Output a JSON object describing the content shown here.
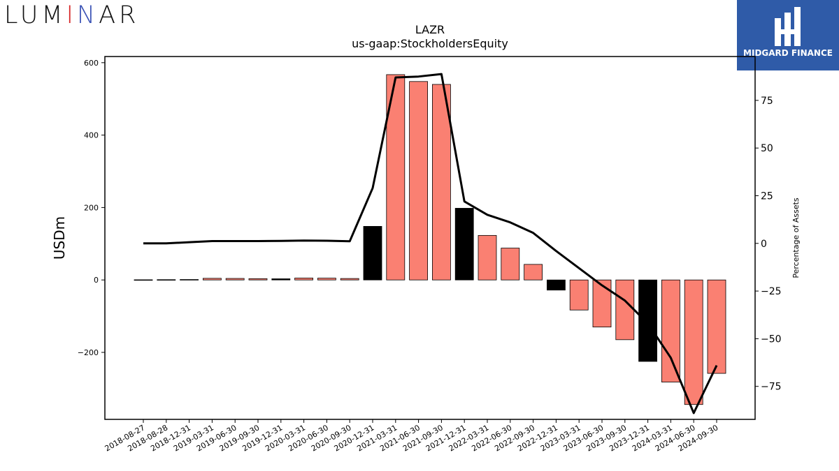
{
  "branding": {
    "left_logo_text": "LUMINAR",
    "right_logo_text": "MIDGARD FINANCE",
    "left_logo_accent_colors": [
      "#d62728",
      "#2ca02c",
      "#3a52b5"
    ],
    "right_logo_bg": "#2f5ba8"
  },
  "chart_data": {
    "type": "bar",
    "title": "LAZR",
    "subtitle": "us-gaap:StockholdersEquity",
    "ylabel": "USDm",
    "y2label": "Percentage of Assets",
    "categories": [
      "2018-08-27",
      "2018-08-28",
      "2018-12-31",
      "2019-03-31",
      "2019-06-30",
      "2019-09-30",
      "2019-12-31",
      "2020-03-31",
      "2020-06-30",
      "2020-09-30",
      "2020-12-31",
      "2021-03-31",
      "2021-06-30",
      "2021-09-30",
      "2021-12-31",
      "2022-03-31",
      "2022-06-30",
      "2022-09-30",
      "2022-12-31",
      "2023-03-31",
      "2023-06-30",
      "2023-09-30",
      "2023-12-31",
      "2024-03-31",
      "2024-06-30",
      "2024-09-30"
    ],
    "values": [
      0.5,
      0.8,
      1.2,
      4.5,
      4.2,
      3.6,
      3.2,
      5.3,
      5.0,
      4.0,
      148,
      567,
      548,
      540,
      198,
      123,
      88,
      43,
      -28,
      -83,
      -130,
      -165,
      -225,
      -282,
      -344,
      -258
    ],
    "bar_colors": [
      "salmon",
      "salmon",
      "salmon",
      "salmon",
      "salmon",
      "salmon",
      "black",
      "salmon",
      "salmon",
      "salmon",
      "black",
      "salmon",
      "salmon",
      "salmon",
      "black",
      "salmon",
      "salmon",
      "salmon",
      "black",
      "salmon",
      "salmon",
      "salmon",
      "black",
      "salmon",
      "salmon",
      "salmon"
    ],
    "line_values": [
      0,
      0,
      0.6,
      1.2,
      1.2,
      1.2,
      1.3,
      1.5,
      1.4,
      1.1,
      29,
      87,
      87.5,
      88.8,
      22,
      15,
      11,
      5.5,
      -4,
      -13,
      -22,
      -30,
      -42,
      -60,
      -89,
      -64
    ],
    "ylim": [
      -385,
      617
    ],
    "y2lim": [
      -92.3,
      98.0
    ],
    "yticks": [
      -200,
      0,
      200,
      400,
      600
    ],
    "y2ticks": [
      -75,
      -50,
      -25,
      0,
      25,
      50,
      75
    ],
    "colors": {
      "salmon": "#fa8072",
      "black": "#000000",
      "line": "#000000"
    }
  }
}
